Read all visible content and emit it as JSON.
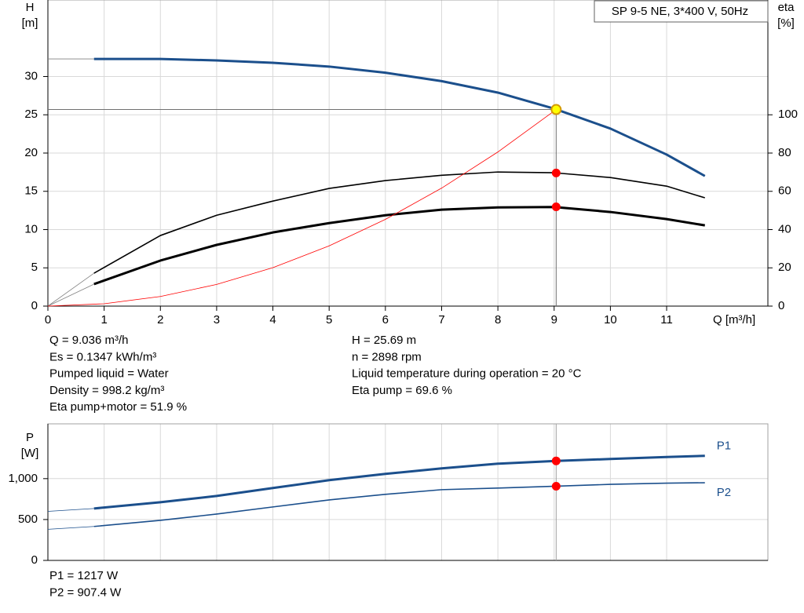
{
  "chart_data": [
    {
      "type": "line",
      "title": "SP 9-5 NE, 3*400 V, 50Hz",
      "x_label": "Q [m³/h]",
      "y_label": [
        "H",
        "[m]"
      ],
      "y2_label": [
        "eta",
        "[%]"
      ],
      "xlim": [
        0,
        12.8
      ],
      "xticks": [
        0,
        1,
        2,
        3,
        4,
        5,
        6,
        7,
        8,
        9,
        10,
        11
      ],
      "ylim": [
        0,
        40
      ],
      "yticks": [
        0,
        5,
        10,
        15,
        20,
        25,
        30
      ],
      "y2lim": [
        0,
        160
      ],
      "y2ticks": [
        0,
        20,
        40,
        60,
        80,
        100
      ],
      "grid": true,
      "series": [
        {
          "color": "#808080",
          "weight": "thin",
          "x": [
            0,
            0.82
          ],
          "values": [
            32.3,
            32.3
          ]
        },
        {
          "color": "#1b4f8c",
          "weight": "thick",
          "x": [
            0.82,
            1,
            2,
            3,
            4,
            5,
            6,
            7,
            8,
            9,
            10,
            11,
            11.68
          ],
          "values": [
            32.3,
            32.3,
            32.3,
            32.1,
            31.8,
            31.3,
            30.5,
            29.4,
            27.9,
            25.8,
            23.2,
            19.8,
            17.0
          ]
        },
        {
          "color": "#808080",
          "weight": "thin",
          "axis": "y2",
          "x": [
            0,
            0.82
          ],
          "values": [
            0,
            17.2
          ]
        },
        {
          "color": "#000000",
          "weight": "normal",
          "axis": "y2",
          "x": [
            0.82,
            2,
            3,
            4,
            5,
            6,
            7,
            8,
            9,
            10,
            11,
            11.68
          ],
          "values": [
            17.2,
            36.9,
            47.5,
            54.9,
            61.5,
            65.6,
            68.4,
            70.1,
            69.7,
            67.2,
            62.7,
            56.6
          ]
        },
        {
          "color": "#808080",
          "weight": "thin",
          "axis": "y2",
          "x": [
            0,
            0.82
          ],
          "values": [
            0,
            11.5
          ]
        },
        {
          "color": "#000000",
          "weight": "thick",
          "axis": "y2",
          "x": [
            0.82,
            2,
            3,
            4,
            5,
            6,
            7,
            8,
            9,
            10,
            11,
            11.68
          ],
          "values": [
            11.5,
            23.8,
            32.0,
            38.5,
            43.4,
            47.5,
            50.4,
            51.6,
            51.8,
            49.2,
            45.5,
            42.2
          ]
        },
        {
          "color": "#ff0000",
          "weight": "thin",
          "x": [
            0,
            1,
            2,
            3,
            4,
            5,
            6,
            7,
            8,
            9.036
          ],
          "values": [
            0,
            0.31,
            1.26,
            2.83,
            5.03,
            7.87,
            11.33,
            15.42,
            20.14,
            25.69
          ]
        }
      ],
      "points": [
        {
          "x": 9.036,
          "y": 25.69,
          "color": "#ffff00",
          "edge": "#d49a00"
        },
        {
          "x": 9.036,
          "y": 69.6,
          "axis": "y2",
          "color": "#ff0000"
        },
        {
          "x": 9.036,
          "y": 51.9,
          "axis": "y2",
          "color": "#ff0000"
        }
      ],
      "notes_left": [
        "Q = 9.036 m³/h",
        "Es = 0.1347 kWh/m³",
        "Pumped liquid = Water",
        "Density = 998.2 kg/m³",
        "Eta pump+motor = 51.9 %"
      ],
      "notes_right": [
        "H = 25.69 m",
        "n = 2898 rpm",
        "Liquid temperature during operation = 20 °C",
        "Eta pump = 69.6 %"
      ]
    },
    {
      "type": "line",
      "y_label": [
        "P",
        "[W]"
      ],
      "xlim": [
        0,
        12.8
      ],
      "ylim": [
        0,
        1670
      ],
      "yticks": [
        0,
        500,
        {
          "value": 1000,
          "label": "1,000"
        }
      ],
      "grid": true,
      "series": [
        {
          "name": "P1",
          "color": "#1b4f8c",
          "weight": "thick",
          "x": [
            0.82,
            2,
            3,
            4,
            5,
            6,
            7,
            8,
            9.036,
            10,
            11,
            11.68
          ],
          "values": [
            635,
            712,
            788,
            885,
            981,
            1058,
            1125,
            1183,
            1217,
            1240,
            1265,
            1279
          ]
        },
        {
          "name": "P2",
          "color": "#1b4f8c",
          "weight": "normal",
          "x": [
            0.82,
            2,
            3,
            4,
            5,
            6,
            7,
            8,
            9.036,
            10,
            11,
            11.68
          ],
          "values": [
            415,
            490,
            567,
            654,
            740,
            808,
            865,
            885,
            907.4,
            930,
            945,
            950
          ]
        },
        {
          "color": "#1b4f8c",
          "weight": "thin",
          "x": [
            0,
            0.82
          ],
          "values": [
            600,
            635
          ]
        },
        {
          "color": "#1b4f8c",
          "weight": "thin",
          "x": [
            0,
            0.82
          ],
          "values": [
            380,
            415
          ]
        }
      ],
      "points": [
        {
          "x": 9.036,
          "y": 1217,
          "color": "#ff0000"
        },
        {
          "x": 9.036,
          "y": 907.4,
          "color": "#ff0000"
        }
      ],
      "notes_left": [
        "P1 = 1217 W",
        "P2 = 907.4 W"
      ]
    }
  ]
}
